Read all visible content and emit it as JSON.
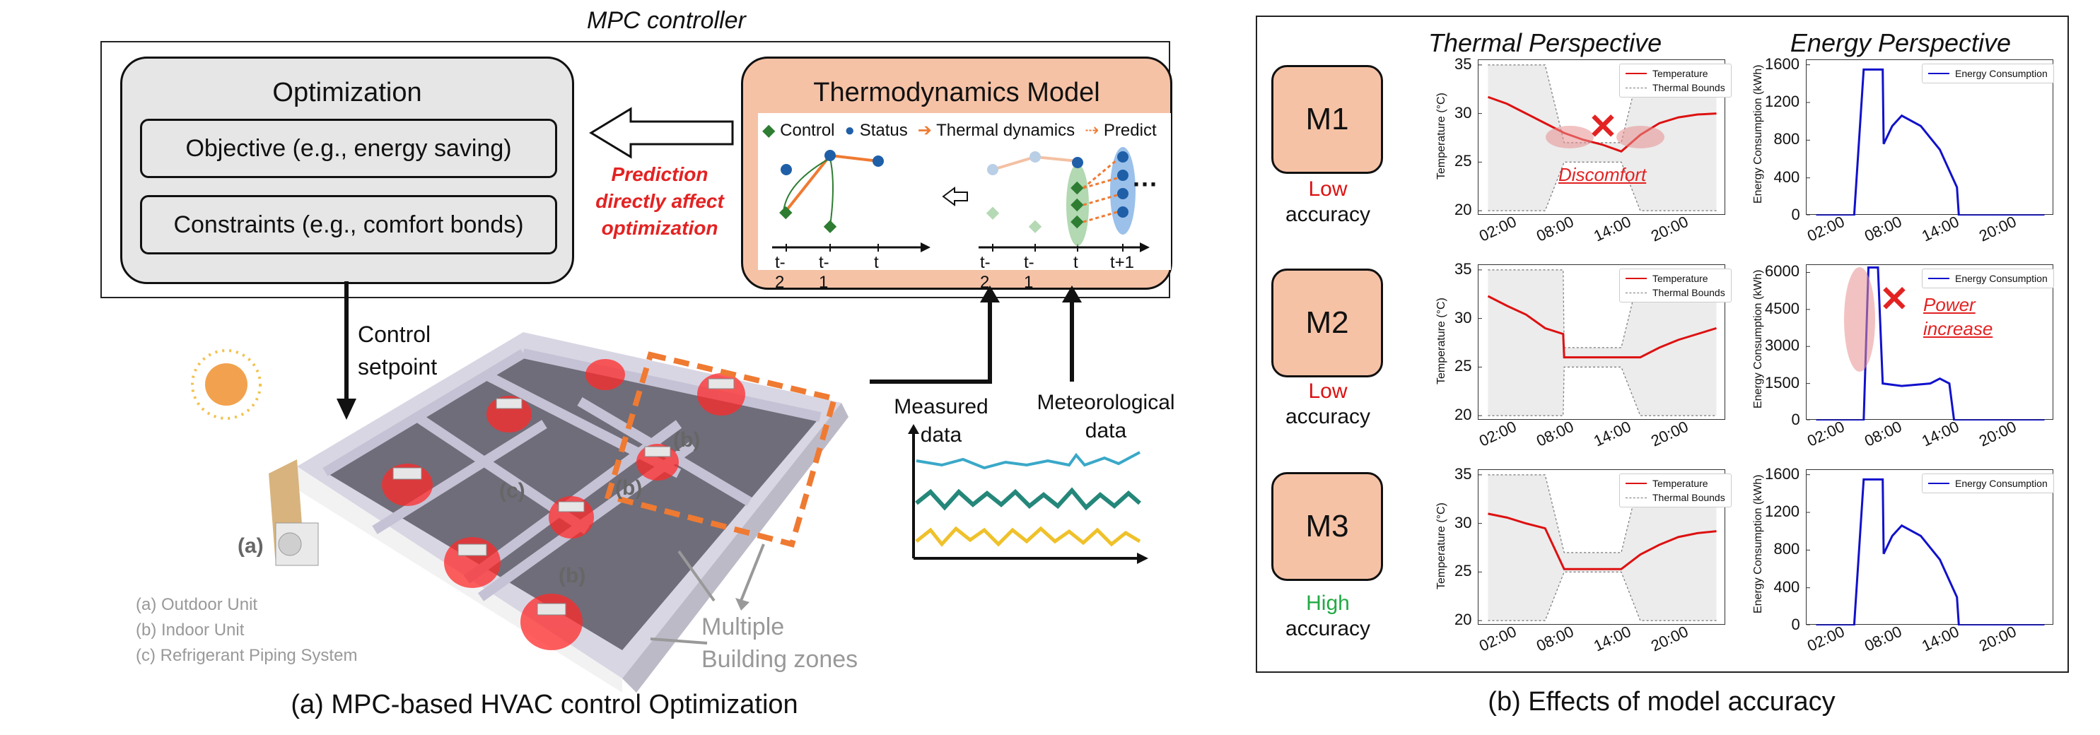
{
  "panel_a": {
    "controller_title": "MPC controller",
    "optimization": {
      "title": "Optimization",
      "objective": "Objective (e.g., energy saving)",
      "constraints": "Constraints (e.g., comfort bonds)"
    },
    "arrow_note": [
      "Prediction",
      "directly affect",
      "optimization"
    ],
    "model": {
      "title": "Thermodynamics Model",
      "legend_control": "Control",
      "legend_status": "Status",
      "legend_thermal": "Thermal dynamics",
      "legend_predict": "Predict",
      "ticks_left": [
        "t-2",
        "t-1",
        "t"
      ],
      "ticks_right": [
        "t-2",
        "t-1",
        "t",
        "t+1"
      ],
      "ellipsis": "···"
    },
    "control_setpoint": [
      "Control",
      "setpoint"
    ],
    "measured_data": [
      "Measured",
      "data"
    ],
    "meteorological_data": [
      "Meteorological",
      "data"
    ],
    "zone_labels": {
      "a": "(a)",
      "b": "(b)",
      "c": "(c)"
    },
    "units_legend": [
      "(a) Outdoor Unit",
      "(b) Indoor Unit",
      "(c) Refrigerant Piping System"
    ],
    "multiple_zones": [
      "Multiple",
      "Building zones"
    ],
    "caption": "(a) MPC-based HVAC control Optimization"
  },
  "panel_b": {
    "col_thermal": "Thermal Perspective",
    "col_energy": "Energy Perspective",
    "caption": "(b) Effects of model accuracy",
    "temp_ylabel": "Temperature (°C)",
    "energy_ylabel": "Energy Consumption (kWh)",
    "legend_temperature": "Temperature",
    "legend_bounds": "Thermal Bounds",
    "legend_energy": "Energy Consumption",
    "xticks": [
      "02:00",
      "08:00",
      "14:00",
      "20:00"
    ],
    "annot_discomfort": "Discomfort",
    "annot_power": [
      "Power",
      "increase"
    ],
    "colors": {
      "temperature": "#dd1111",
      "energy": "#1111cc",
      "low": "#dd1111",
      "high": "#22aa44"
    },
    "models": [
      {
        "name": "M1",
        "accuracy": [
          "Low",
          "accuracy"
        ],
        "accuracy_color": "#dd1111",
        "temp_yticks": [
          "35",
          "30",
          "25",
          "20"
        ],
        "energy_yticks": [
          "1600",
          "1200",
          "800",
          "400",
          "0"
        ],
        "energy_ylim": [
          0,
          1650
        ]
      },
      {
        "name": "M2",
        "accuracy": [
          "Low",
          "accuracy"
        ],
        "accuracy_color": "#dd1111",
        "temp_yticks": [
          "35",
          "30",
          "25",
          "20"
        ],
        "energy_yticks": [
          "6000",
          "4500",
          "3000",
          "1500",
          "0"
        ],
        "energy_ylim": [
          0,
          6300
        ]
      },
      {
        "name": "M3",
        "accuracy": [
          "High",
          "accuracy"
        ],
        "accuracy_color": "#22aa44",
        "temp_yticks": [
          "35",
          "30",
          "25",
          "20"
        ],
        "energy_yticks": [
          "1600",
          "1200",
          "800",
          "400",
          "0"
        ],
        "energy_ylim": [
          0,
          1650
        ]
      }
    ]
  },
  "chart_data": [
    {
      "type": "line",
      "title": "M1 Thermal Perspective",
      "ylabel": "Temperature (°C)",
      "ylim": [
        19.5,
        35.5
      ],
      "x": [
        0,
        2,
        4,
        6,
        8,
        10,
        12,
        14,
        16,
        18,
        20,
        22,
        24
      ],
      "series": [
        {
          "name": "Temperature",
          "values": [
            31.7,
            31.0,
            30.0,
            29.0,
            28.0,
            27.3,
            26.8,
            26.1,
            27.8,
            29.0,
            29.6,
            29.9,
            30.0
          ]
        },
        {
          "name": "Thermal Bounds",
          "values": [
            35,
            35,
            35,
            35,
            27,
            27,
            27,
            27,
            35,
            35,
            35,
            35,
            35
          ]
        },
        {
          "name": "Thermal Bounds",
          "values": [
            20,
            20,
            20,
            20,
            25,
            25,
            25,
            25,
            20,
            20,
            20,
            20,
            20
          ]
        }
      ]
    },
    {
      "type": "line",
      "title": "M1 Energy Perspective",
      "ylabel": "Energy Consumption (kWh)",
      "ylim": [
        0,
        1650
      ],
      "x": [
        0,
        4,
        5,
        5.1,
        7,
        7.1,
        8,
        9,
        11,
        13,
        14.8,
        15,
        24
      ],
      "series": [
        {
          "name": "Energy Consumption",
          "values": [
            0,
            0,
            1550,
            1550,
            1550,
            760,
            950,
            1060,
            950,
            700,
            300,
            0,
            0
          ]
        }
      ]
    },
    {
      "type": "line",
      "title": "M2 Thermal Perspective",
      "ylabel": "Temperature (°C)",
      "ylim": [
        19.5,
        35.5
      ],
      "x": [
        0,
        2,
        4,
        6,
        7.9,
        8,
        10,
        12,
        14,
        16,
        18,
        20,
        22,
        24
      ],
      "series": [
        {
          "name": "Temperature",
          "values": [
            32.3,
            31.3,
            30.4,
            29.0,
            28.4,
            26.0,
            26.0,
            26.0,
            26.0,
            26.0,
            27.0,
            27.8,
            28.4,
            29.0
          ]
        },
        {
          "name": "Thermal Bounds",
          "values": [
            35,
            35,
            35,
            35,
            35,
            27,
            27,
            27,
            27,
            35,
            35,
            35,
            35,
            35
          ]
        },
        {
          "name": "Thermal Bounds",
          "values": [
            20,
            20,
            20,
            20,
            20,
            25,
            25,
            25,
            25,
            20,
            20,
            20,
            20,
            20
          ]
        }
      ]
    },
    {
      "type": "line",
      "title": "M2 Energy Perspective",
      "ylabel": "Energy Consumption (kWh)",
      "ylim": [
        0,
        6300
      ],
      "x": [
        0,
        5,
        5.5,
        6.5,
        7,
        9,
        12,
        13,
        14,
        14.5,
        15,
        24
      ],
      "series": [
        {
          "name": "Energy Consumption",
          "values": [
            0,
            0,
            6200,
            6200,
            1500,
            1400,
            1500,
            1700,
            1500,
            0,
            0,
            0
          ]
        }
      ]
    },
    {
      "type": "line",
      "title": "M3 Thermal Perspective",
      "ylabel": "Temperature (°C)",
      "ylim": [
        19.5,
        35.5
      ],
      "x": [
        0,
        2,
        4,
        6,
        8,
        10,
        12,
        14,
        16,
        18,
        20,
        22,
        24
      ],
      "series": [
        {
          "name": "Temperature",
          "values": [
            31.0,
            30.6,
            30.0,
            29.5,
            25.3,
            25.3,
            25.3,
            25.3,
            26.8,
            27.8,
            28.6,
            29.0,
            29.2
          ]
        },
        {
          "name": "Thermal Bounds",
          "values": [
            35,
            35,
            35,
            35,
            27,
            27,
            27,
            27,
            35,
            35,
            35,
            35,
            35
          ]
        },
        {
          "name": "Thermal Bounds",
          "values": [
            20,
            20,
            20,
            20,
            25,
            25,
            25,
            25,
            20,
            20,
            20,
            20,
            20
          ]
        }
      ]
    },
    {
      "type": "line",
      "title": "M3 Energy Perspective",
      "ylabel": "Energy Consumption (kWh)",
      "ylim": [
        0,
        1650
      ],
      "x": [
        0,
        4,
        5,
        5.1,
        7,
        7.1,
        8,
        9,
        11,
        13,
        14.8,
        15,
        24
      ],
      "series": [
        {
          "name": "Energy Consumption",
          "values": [
            0,
            0,
            1550,
            1550,
            1550,
            760,
            950,
            1060,
            950,
            700,
            300,
            0,
            0
          ]
        }
      ]
    }
  ]
}
